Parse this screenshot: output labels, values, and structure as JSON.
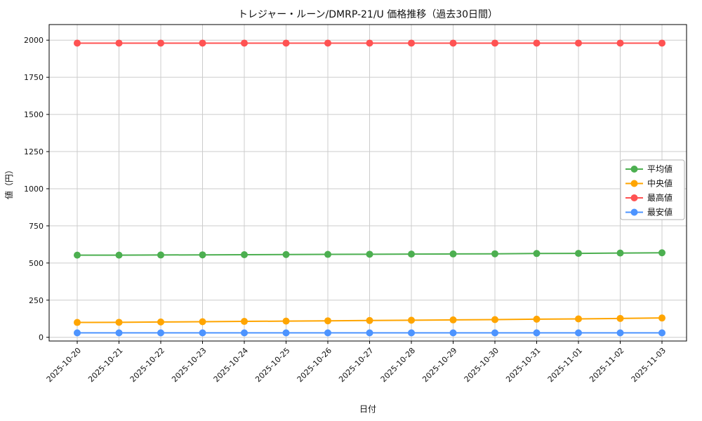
{
  "chart_data": {
    "type": "line",
    "title": "トレジャー・ルーン/DMRP-21/U 価格推移（過去30日間）",
    "xlabel": "日付",
    "ylabel": "値（円）",
    "x": [
      "2025-10-20",
      "2025-10-21",
      "2025-10-22",
      "2025-10-23",
      "2025-10-24",
      "2025-10-25",
      "2025-10-26",
      "2025-10-27",
      "2025-10-28",
      "2025-10-29",
      "2025-10-30",
      "2025-10-31",
      "2025-11-01",
      "2025-11-02",
      "2025-11-03"
    ],
    "yticks": [
      0,
      250,
      500,
      750,
      1000,
      1250,
      1500,
      1750,
      2000
    ],
    "ylim": [
      -25,
      2105
    ],
    "grid": true,
    "grid_color": "#cccccc",
    "axes_color": "#000000",
    "legend_position": "right-middle",
    "series": [
      {
        "key": "average",
        "name": "平均値",
        "color": "#4caf50",
        "values": [
          553,
          553,
          554,
          555,
          556,
          557,
          558,
          559,
          560,
          561,
          562,
          564,
          565,
          567,
          569
        ]
      },
      {
        "key": "median",
        "name": "中央値",
        "color": "#ffa500",
        "values": [
          100,
          101,
          103,
          105,
          107,
          109,
          111,
          113,
          115,
          117,
          119,
          122,
          124,
          127,
          130
        ]
      },
      {
        "key": "max",
        "name": "最高値",
        "color": "#ff5252",
        "values": [
          1980,
          1980,
          1980,
          1980,
          1980,
          1980,
          1980,
          1980,
          1980,
          1980,
          1980,
          1980,
          1980,
          1980,
          1980
        ]
      },
      {
        "key": "min",
        "name": "最安値",
        "color": "#4d94ff",
        "values": [
          30,
          30,
          30,
          30,
          30,
          30,
          30,
          30,
          30,
          30,
          30,
          30,
          30,
          30,
          30
        ]
      }
    ]
  }
}
